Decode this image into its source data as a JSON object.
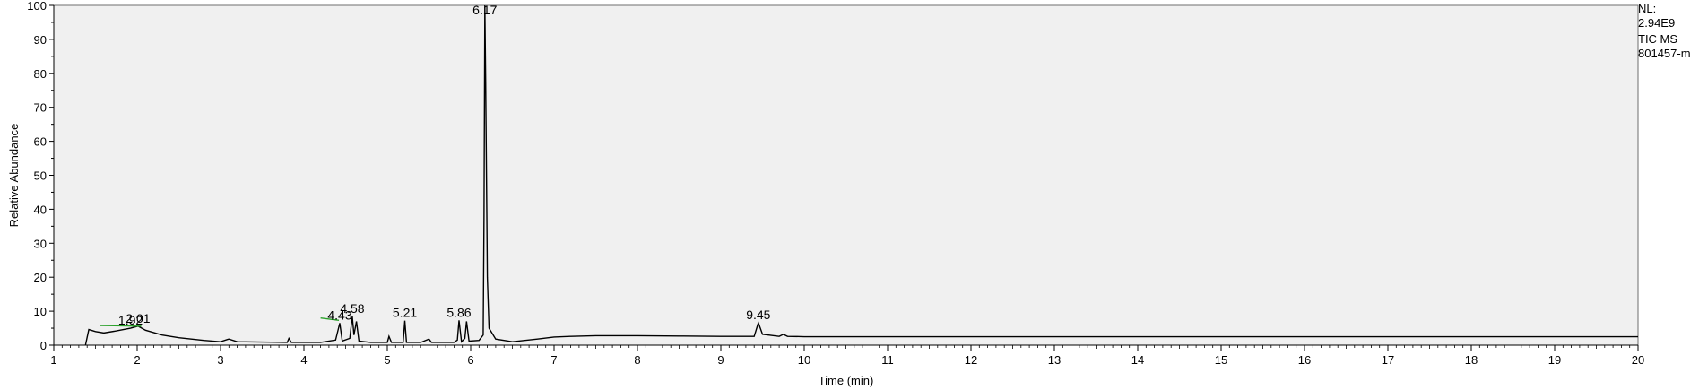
{
  "chart_data": {
    "type": "line",
    "title": "",
    "xlabel": "Time (min)",
    "ylabel": "Relative Abundance",
    "xlim": [
      1,
      20
    ],
    "ylim": [
      0,
      100
    ],
    "x_ticks": [
      1,
      2,
      3,
      4,
      5,
      6,
      7,
      8,
      9,
      10,
      11,
      12,
      13,
      14,
      15,
      16,
      17,
      18,
      19,
      20
    ],
    "y_ticks": [
      0,
      10,
      20,
      30,
      40,
      50,
      60,
      70,
      80,
      90,
      100
    ],
    "grid": false,
    "plot_background": "#f0f0f0",
    "line_color": "#000000",
    "baseline_marker_color": "#2aa02a",
    "series": [
      {
        "points": [
          [
            1.38,
            0
          ],
          [
            1.42,
            4.6
          ],
          [
            1.5,
            4.0
          ],
          [
            1.6,
            3.6
          ],
          [
            1.75,
            4.2
          ],
          [
            1.92,
            5.0
          ],
          [
            2.01,
            5.6
          ],
          [
            2.1,
            4.4
          ],
          [
            2.3,
            3.0
          ],
          [
            2.5,
            2.2
          ],
          [
            2.8,
            1.4
          ],
          [
            3.0,
            1.0
          ],
          [
            3.1,
            1.8
          ],
          [
            3.2,
            1.0
          ],
          [
            3.8,
            0.8
          ],
          [
            3.82,
            2.0
          ],
          [
            3.85,
            0.8
          ],
          [
            4.2,
            0.8
          ],
          [
            4.38,
            1.5
          ],
          [
            4.43,
            6.5
          ],
          [
            4.46,
            1.2
          ],
          [
            4.55,
            2.0
          ],
          [
            4.58,
            8.5
          ],
          [
            4.6,
            3.0
          ],
          [
            4.63,
            7.0
          ],
          [
            4.66,
            1.2
          ],
          [
            4.8,
            0.8
          ],
          [
            5.0,
            0.8
          ],
          [
            5.02,
            2.6
          ],
          [
            5.05,
            0.8
          ],
          [
            5.19,
            0.8
          ],
          [
            5.21,
            7.2
          ],
          [
            5.23,
            0.8
          ],
          [
            5.4,
            0.8
          ],
          [
            5.5,
            1.8
          ],
          [
            5.53,
            0.8
          ],
          [
            5.8,
            0.8
          ],
          [
            5.84,
            1.5
          ],
          [
            5.86,
            7.3
          ],
          [
            5.89,
            1.0
          ],
          [
            5.93,
            2.0
          ],
          [
            5.95,
            7.0
          ],
          [
            5.98,
            1.2
          ],
          [
            6.1,
            1.4
          ],
          [
            6.15,
            3.0
          ],
          [
            6.16,
            38.0
          ],
          [
            6.17,
            100.0
          ],
          [
            6.18,
            77.0
          ],
          [
            6.2,
            20.0
          ],
          [
            6.22,
            5.0
          ],
          [
            6.3,
            1.8
          ],
          [
            6.5,
            1.0
          ],
          [
            6.8,
            1.8
          ],
          [
            7.0,
            2.4
          ],
          [
            7.2,
            2.6
          ],
          [
            7.5,
            2.8
          ],
          [
            8.0,
            2.8
          ],
          [
            8.5,
            2.7
          ],
          [
            9.0,
            2.6
          ],
          [
            9.4,
            2.6
          ],
          [
            9.45,
            6.6
          ],
          [
            9.5,
            3.2
          ],
          [
            9.7,
            2.6
          ],
          [
            9.75,
            3.2
          ],
          [
            9.8,
            2.6
          ],
          [
            10.0,
            2.5
          ],
          [
            12.0,
            2.5
          ],
          [
            14.0,
            2.5
          ],
          [
            16.0,
            2.5
          ],
          [
            18.0,
            2.5
          ],
          [
            20.0,
            2.5
          ]
        ]
      }
    ],
    "peak_labels": [
      {
        "x": 1.92,
        "y": 5.0,
        "label": "1.92"
      },
      {
        "x": 2.01,
        "y": 5.6,
        "label": "2.01"
      },
      {
        "x": 4.43,
        "y": 6.5,
        "label": "4.43"
      },
      {
        "x": 4.58,
        "y": 8.5,
        "label": "4.58"
      },
      {
        "x": 5.21,
        "y": 7.2,
        "label": "5.21"
      },
      {
        "x": 5.86,
        "y": 7.3,
        "label": "5.86"
      },
      {
        "x": 6.17,
        "y": 100.0,
        "label": "6.17"
      },
      {
        "x": 9.45,
        "y": 6.6,
        "label": "9.45"
      }
    ],
    "baseline_segments": [
      {
        "x1": 1.55,
        "y1": 5.8,
        "x2": 2.05,
        "y2": 5.6
      },
      {
        "x1": 4.2,
        "y1": 8.0,
        "x2": 4.42,
        "y2": 7.3
      }
    ]
  },
  "info": {
    "nl_label": "NL:",
    "nl_value": "2.94E9",
    "scan": "TIC  MS",
    "file": "801457-m"
  }
}
